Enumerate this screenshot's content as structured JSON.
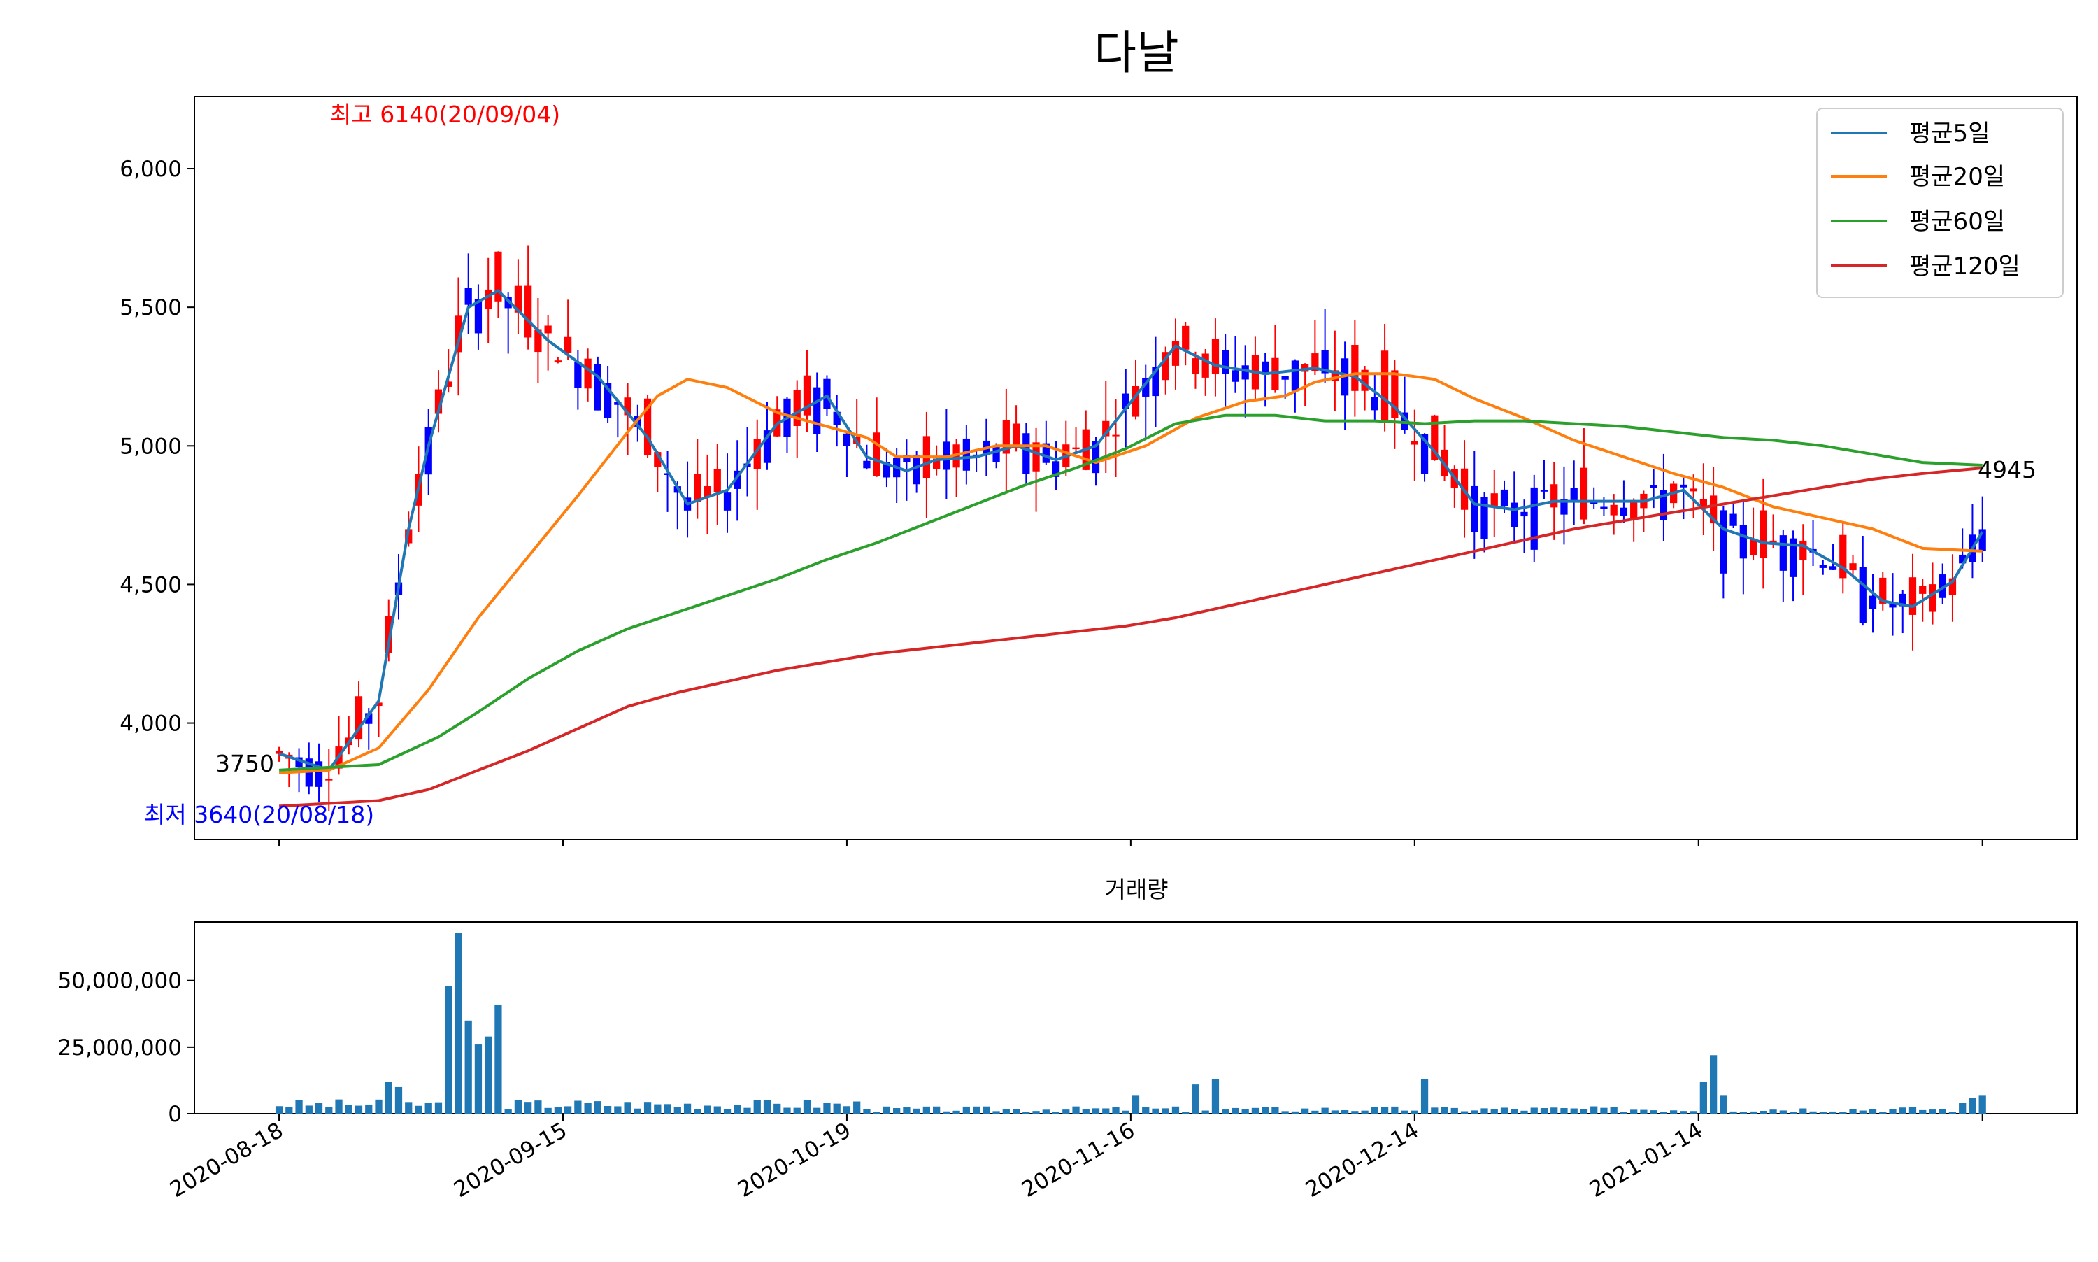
{
  "chart_data": [
    {
      "type": "candlestick",
      "title": "다날",
      "ylim": [
        3580,
        6260
      ],
      "yticks": [
        4000,
        4500,
        5000,
        5500,
        6000
      ],
      "ytick_labels": [
        "4,000",
        "4,500",
        "5,000",
        "5,500",
        "6,000"
      ],
      "up_color": "#ff0000",
      "down_color": "#0000ff",
      "annotations": {
        "high_label": "최고 6140(20/09/04)",
        "low_label": "최저 3640(20/08/18)",
        "first_close_label": "3750",
        "last_close_label": "4945"
      },
      "legend": {
        "placement": "top-right",
        "entries": [
          {
            "name": "평균5일",
            "color": "#1f77b4"
          },
          {
            "name": "평균20일",
            "color": "#ff7f0e"
          },
          {
            "name": "평균60일",
            "color": "#2ca02c"
          },
          {
            "name": "평균120일",
            "color": "#d62728"
          }
        ]
      },
      "ma_series": [
        {
          "name": "평균5일",
          "color": "#1f77b4",
          "values": [
            [
              0,
              3890
            ],
            [
              5,
              3830
            ],
            [
              10,
              4080
            ],
            [
              13,
              4700
            ],
            [
              15,
              5000
            ],
            [
              19,
              5500
            ],
            [
              22,
              5560
            ],
            [
              27,
              5380
            ],
            [
              32,
              5250
            ],
            [
              37,
              5030
            ],
            [
              41,
              4790
            ],
            [
              45,
              4840
            ],
            [
              50,
              5080
            ],
            [
              55,
              5180
            ],
            [
              59,
              4960
            ],
            [
              63,
              4910
            ],
            [
              66,
              4950
            ],
            [
              70,
              4960
            ],
            [
              74,
              5000
            ],
            [
              78,
              4950
            ],
            [
              82,
              5000
            ],
            [
              86,
              5180
            ],
            [
              90,
              5360
            ],
            [
              94,
              5290
            ],
            [
              99,
              5260
            ],
            [
              104,
              5280
            ],
            [
              108,
              5250
            ],
            [
              112,
              5140
            ],
            [
              116,
              4980
            ],
            [
              120,
              4790
            ],
            [
              124,
              4770
            ],
            [
              128,
              4800
            ],
            [
              132,
              4800
            ],
            [
              137,
              4800
            ],
            [
              141,
              4840
            ],
            [
              145,
              4700
            ],
            [
              149,
              4650
            ],
            [
              153,
              4640
            ],
            [
              157,
              4560
            ],
            [
              161,
              4440
            ],
            [
              164,
              4420
            ],
            [
              168,
              4510
            ],
            [
              171,
              4690
            ]
          ]
        },
        {
          "name": "평균20일",
          "color": "#ff7f0e",
          "values": [
            [
              0,
              3820
            ],
            [
              5,
              3830
            ],
            [
              10,
              3910
            ],
            [
              15,
              4120
            ],
            [
              20,
              4380
            ],
            [
              25,
              4600
            ],
            [
              30,
              4820
            ],
            [
              35,
              5050
            ],
            [
              38,
              5180
            ],
            [
              41,
              5240
            ],
            [
              45,
              5210
            ],
            [
              50,
              5120
            ],
            [
              55,
              5070
            ],
            [
              59,
              5030
            ],
            [
              62,
              4960
            ],
            [
              67,
              4960
            ],
            [
              72,
              5000
            ],
            [
              77,
              5000
            ],
            [
              82,
              4940
            ],
            [
              87,
              5000
            ],
            [
              92,
              5100
            ],
            [
              97,
              5160
            ],
            [
              101,
              5180
            ],
            [
              104,
              5230
            ],
            [
              108,
              5260
            ],
            [
              112,
              5260
            ],
            [
              116,
              5240
            ],
            [
              120,
              5170
            ],
            [
              125,
              5100
            ],
            [
              130,
              5020
            ],
            [
              135,
              4960
            ],
            [
              140,
              4900
            ],
            [
              145,
              4850
            ],
            [
              150,
              4780
            ],
            [
              155,
              4740
            ],
            [
              160,
              4700
            ],
            [
              165,
              4630
            ],
            [
              171,
              4620
            ]
          ]
        },
        {
          "name": "평균60일",
          "color": "#2ca02c",
          "values": [
            [
              0,
              3830
            ],
            [
              10,
              3850
            ],
            [
              16,
              3950
            ],
            [
              20,
              4040
            ],
            [
              25,
              4160
            ],
            [
              30,
              4260
            ],
            [
              35,
              4340
            ],
            [
              40,
              4400
            ],
            [
              45,
              4460
            ],
            [
              50,
              4520
            ],
            [
              55,
              4590
            ],
            [
              60,
              4650
            ],
            [
              65,
              4720
            ],
            [
              70,
              4790
            ],
            [
              75,
              4860
            ],
            [
              80,
              4920
            ],
            [
              85,
              4990
            ],
            [
              90,
              5080
            ],
            [
              95,
              5110
            ],
            [
              100,
              5110
            ],
            [
              105,
              5090
            ],
            [
              110,
              5090
            ],
            [
              115,
              5080
            ],
            [
              120,
              5090
            ],
            [
              125,
              5090
            ],
            [
              130,
              5080
            ],
            [
              135,
              5070
            ],
            [
              140,
              5050
            ],
            [
              145,
              5030
            ],
            [
              150,
              5020
            ],
            [
              155,
              5000
            ],
            [
              160,
              4970
            ],
            [
              165,
              4940
            ],
            [
              171,
              4930
            ]
          ]
        },
        {
          "name": "평균120일",
          "color": "#d62728",
          "values": [
            [
              0,
              3700
            ],
            [
              5,
              3710
            ],
            [
              10,
              3720
            ],
            [
              15,
              3760
            ],
            [
              20,
              3830
            ],
            [
              25,
              3900
            ],
            [
              30,
              3980
            ],
            [
              35,
              4060
            ],
            [
              40,
              4110
            ],
            [
              45,
              4150
            ],
            [
              50,
              4190
            ],
            [
              55,
              4220
            ],
            [
              60,
              4250
            ],
            [
              65,
              4270
            ],
            [
              70,
              4290
            ],
            [
              75,
              4310
            ],
            [
              80,
              4330
            ],
            [
              85,
              4350
            ],
            [
              90,
              4380
            ],
            [
              95,
              4420
            ],
            [
              100,
              4460
            ],
            [
              105,
              4500
            ],
            [
              110,
              4540
            ],
            [
              115,
              4580
            ],
            [
              120,
              4620
            ],
            [
              125,
              4660
            ],
            [
              130,
              4700
            ],
            [
              135,
              4730
            ],
            [
              140,
              4760
            ],
            [
              145,
              4790
            ],
            [
              150,
              4820
            ],
            [
              155,
              4850
            ],
            [
              160,
              4880
            ],
            [
              165,
              4900
            ],
            [
              171,
              4920
            ]
          ]
        }
      ]
    },
    {
      "type": "bar",
      "title": "거래량",
      "ylim": [
        0,
        72000000
      ],
      "yticks": [
        0,
        25000000,
        50000000
      ],
      "ytick_labels": [
        "0",
        "25,000,000",
        "50,000,000"
      ],
      "bar_color": "#1f77b4",
      "x_index_range": [
        0,
        172
      ],
      "x_ticks": [
        {
          "index": 0,
          "label": "2020-08-18"
        },
        {
          "index": 28.5,
          "label": "2020-09-15"
        },
        {
          "index": 57,
          "label": "2020-10-19"
        },
        {
          "index": 85.5,
          "label": "2020-11-16"
        },
        {
          "index": 114,
          "label": "2020-12-14"
        },
        {
          "index": 142.5,
          "label": "2021-01-14"
        },
        {
          "index": 171,
          "label": ""
        }
      ]
    }
  ]
}
